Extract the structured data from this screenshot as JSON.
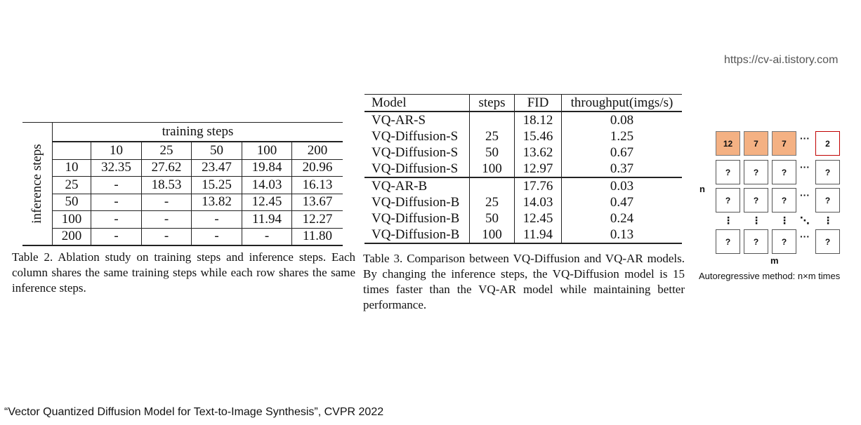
{
  "watermark": "https://cv-ai.tistory.com",
  "table2": {
    "col_group_header": "training steps",
    "row_group_header": "inference steps",
    "columns": [
      "10",
      "25",
      "50",
      "100",
      "200"
    ],
    "rows": [
      {
        "label": "10",
        "cells": [
          "32.35",
          "27.62",
          "23.47",
          "19.84",
          "20.96"
        ]
      },
      {
        "label": "25",
        "cells": [
          "-",
          "18.53",
          "15.25",
          "14.03",
          "16.13"
        ]
      },
      {
        "label": "50",
        "cells": [
          "-",
          "-",
          "13.82",
          "12.45",
          "13.67"
        ]
      },
      {
        "label": "100",
        "cells": [
          "-",
          "-",
          "-",
          "11.94",
          "12.27"
        ]
      },
      {
        "label": "200",
        "cells": [
          "-",
          "-",
          "-",
          "-",
          "11.80"
        ]
      }
    ],
    "caption": "Table 2. Ablation study on training steps and inference steps. Each column shares the same training steps while each row shares the same inference steps."
  },
  "table3": {
    "header": [
      "Model",
      "steps",
      "FID",
      "throughput(imgs/s)"
    ],
    "groups": [
      [
        [
          "VQ-AR-S",
          null,
          "18.12",
          "0.08"
        ],
        [
          "VQ-Diffusion-S",
          "25",
          "15.46",
          "1.25"
        ],
        [
          "VQ-Diffusion-S",
          "50",
          "13.62",
          "0.67"
        ],
        [
          "VQ-Diffusion-S",
          "100",
          "12.97",
          "0.37"
        ]
      ],
      [
        [
          "VQ-AR-B",
          null,
          "17.76",
          "0.03"
        ],
        [
          "VQ-Diffusion-B",
          "25",
          "14.03",
          "0.47"
        ],
        [
          "VQ-Diffusion-B",
          "50",
          "12.45",
          "0.24"
        ],
        [
          "VQ-Diffusion-B",
          "100",
          "11.94",
          "0.13"
        ]
      ]
    ],
    "caption": "Table 3.  Comparison between VQ-Diffusion and VQ-AR models. By changing the inference steps, the VQ-Diffusion model is 15 times faster than the VQ-AR model while maintaining better performance."
  },
  "diagram": {
    "grid": [
      [
        "12",
        "7",
        "7",
        "···",
        "2"
      ],
      [
        "?",
        "?",
        "?",
        "···",
        "?"
      ],
      [
        "?",
        "?",
        "?",
        "···",
        "?"
      ],
      [
        "⋮",
        "⋮",
        "⋮",
        "⋱",
        "⋮"
      ],
      [
        "?",
        "?",
        "?",
        "···",
        "?"
      ]
    ],
    "row_label": "n",
    "col_label": "m",
    "caption": "Autoregressive method: n×m times"
  },
  "footer": "“Vector Quantized Diffusion Model for Text-to-Image Synthesis”, CVPR 2022"
}
